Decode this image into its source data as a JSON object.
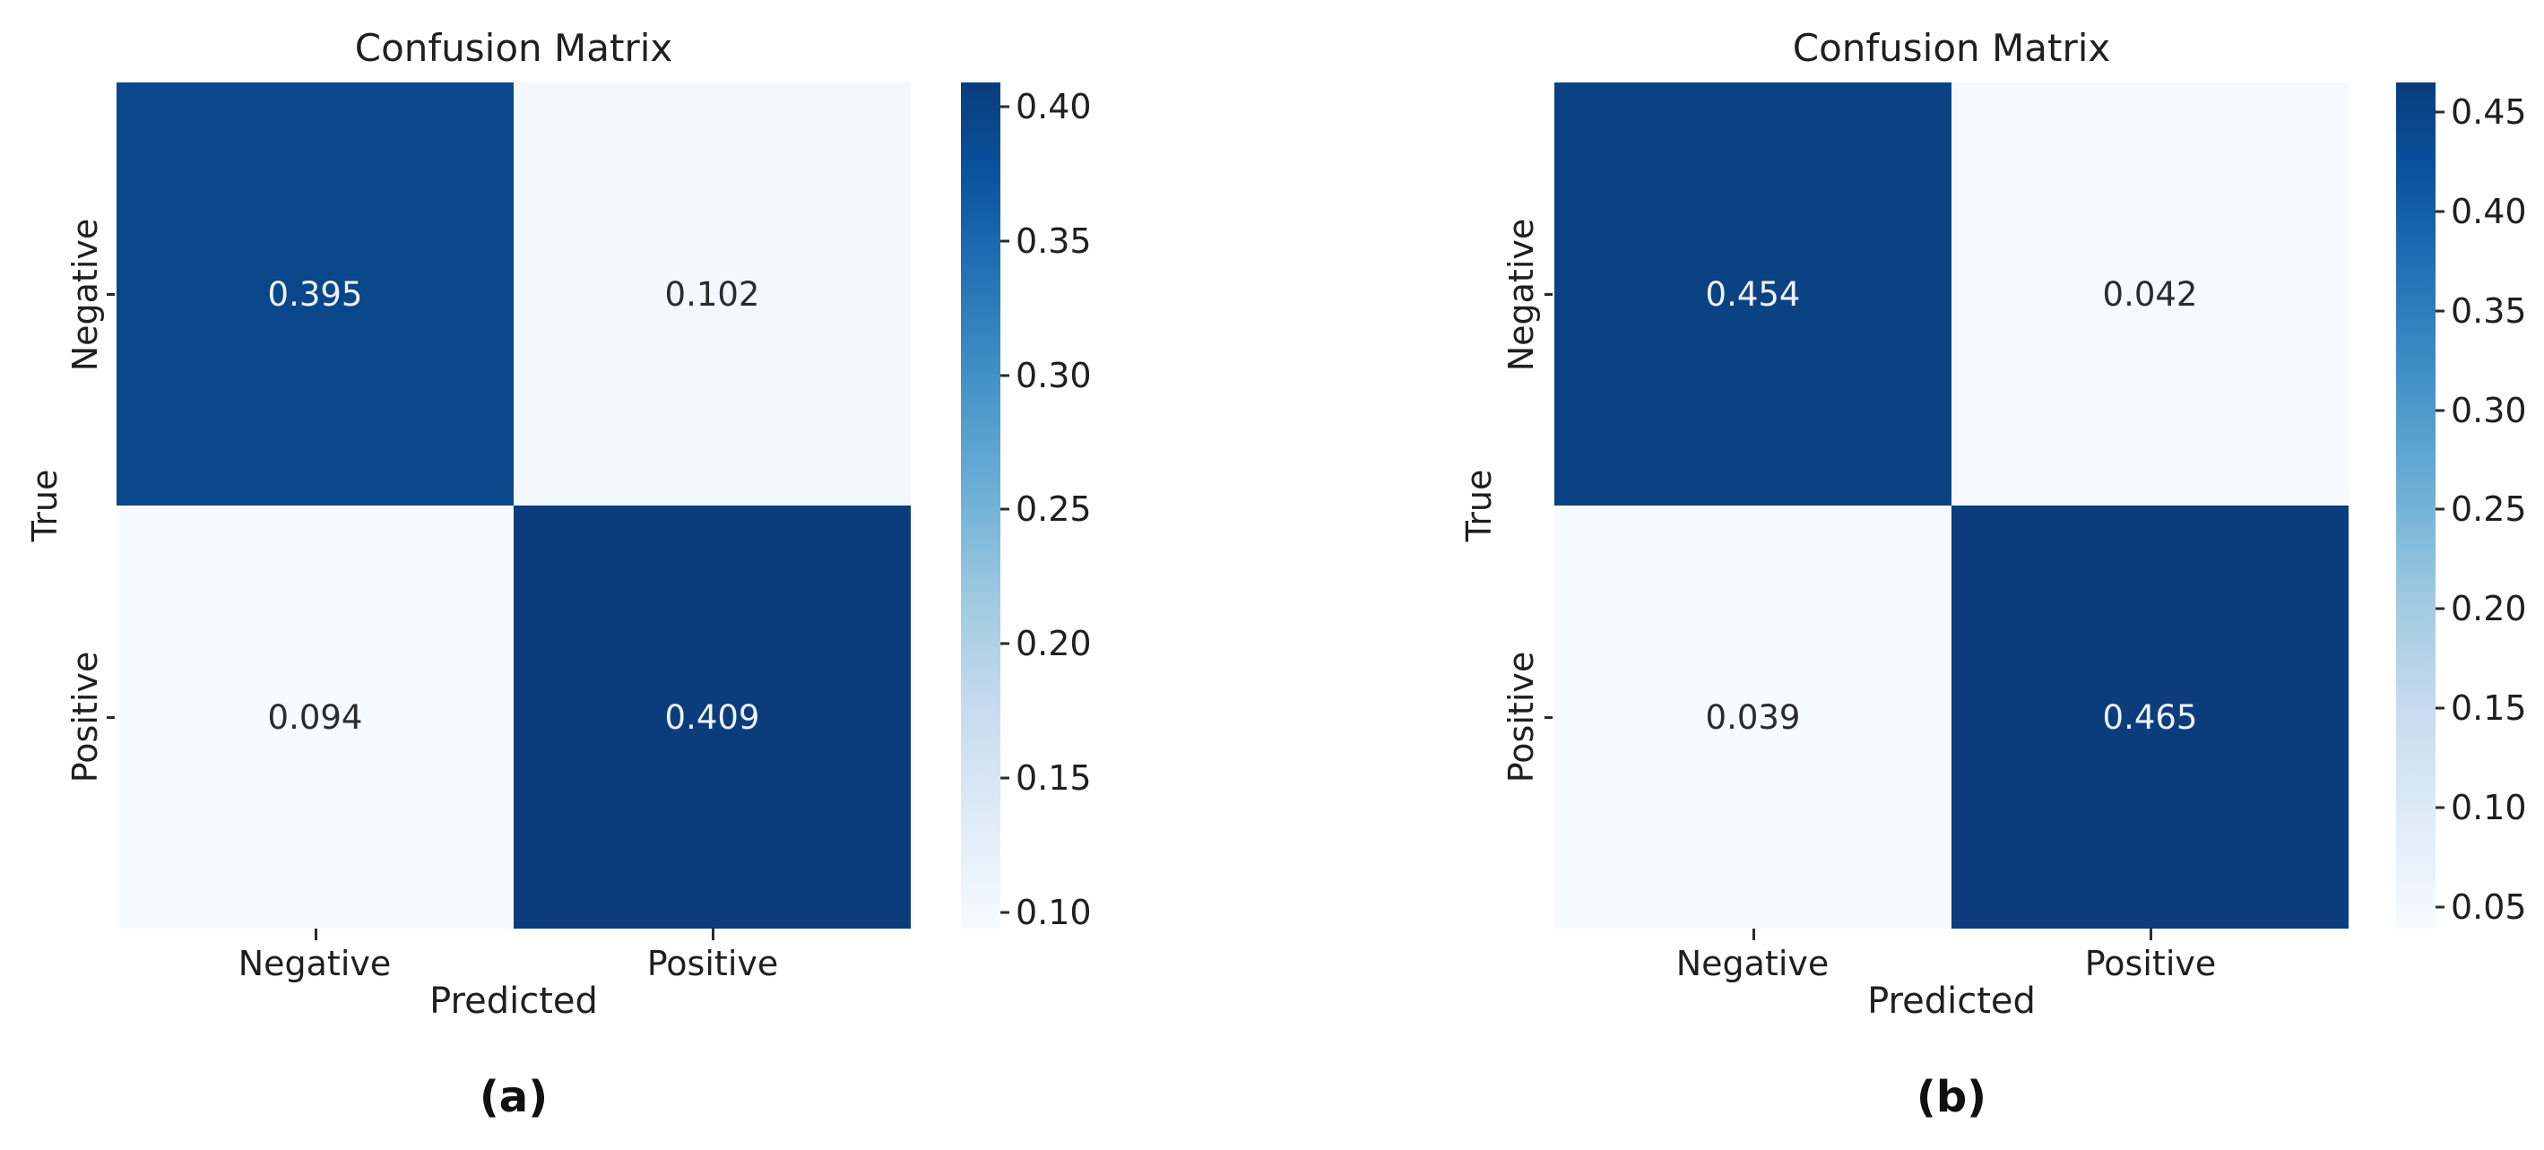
{
  "page": {
    "background": "#ffffff"
  },
  "styles": {
    "colormap_name": "Blues",
    "cmap_low": "#f7fbff",
    "cmap_high": "#0b3d7c",
    "annot_on_dark": "#eef2f8",
    "annot_on_light": "#2b2b2b",
    "text_color": "#1f1f1f",
    "tick_color": "#2b2b2b"
  },
  "chart_data": [
    {
      "type": "heatmap",
      "panel_caption": "(a)",
      "title": "Confusion Matrix",
      "xlabel": "Predicted",
      "ylabel": "True",
      "x_tick_labels": [
        "Negative",
        "Positive"
      ],
      "y_tick_labels": [
        "Negative",
        "Positive"
      ],
      "values": [
        [
          0.395,
          0.102
        ],
        [
          0.094,
          0.409
        ]
      ],
      "value_labels": [
        [
          "0.395",
          "0.102"
        ],
        [
          "0.094",
          "0.409"
        ]
      ],
      "colorbar": {
        "vmin": 0.094,
        "vmax": 0.409,
        "ticks": [
          0.4,
          0.35,
          0.3,
          0.25,
          0.2,
          0.15,
          0.1
        ],
        "tick_labels": [
          "0.40",
          "0.35",
          "0.30",
          "0.25",
          "0.20",
          "0.15",
          "0.10"
        ]
      }
    },
    {
      "type": "heatmap",
      "panel_caption": "(b)",
      "title": "Confusion Matrix",
      "xlabel": "Predicted",
      "ylabel": "True",
      "x_tick_labels": [
        "Negative",
        "Positive"
      ],
      "y_tick_labels": [
        "Negative",
        "Positive"
      ],
      "values": [
        [
          0.454,
          0.042
        ],
        [
          0.039,
          0.465
        ]
      ],
      "value_labels": [
        [
          "0.454",
          "0.042"
        ],
        [
          "0.039",
          "0.465"
        ]
      ],
      "colorbar": {
        "vmin": 0.039,
        "vmax": 0.465,
        "ticks": [
          0.45,
          0.4,
          0.35,
          0.3,
          0.25,
          0.2,
          0.15,
          0.1,
          0.05
        ],
        "tick_labels": [
          "0.45",
          "0.40",
          "0.35",
          "0.30",
          "0.25",
          "0.20",
          "0.15",
          "0.10",
          "0.05"
        ]
      }
    }
  ]
}
